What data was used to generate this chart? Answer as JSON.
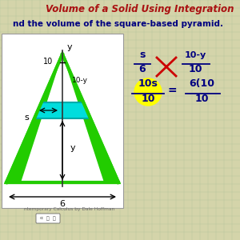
{
  "bg_color": "#d4d4aa",
  "grid_color": "#b8c8a0",
  "title": "Volume of a Solid Using Integration",
  "title_color": "#aa1111",
  "subtitle": "nd the volume of the square-based pyramid.",
  "subtitle_color": "#000080",
  "box_bg": "#ffffff",
  "pyramid_outer_color": "#22cc00",
  "pyramid_fill": "#22cc00",
  "cyan_fill": "#00dddd",
  "cyan_edge": "#00aaaa",
  "math_color": "#000080",
  "red_cross_color": "#cc0000",
  "yellow_circle_color": "#ffff00",
  "watermark_text": "ntemporary Calculus by Dale Hoffman"
}
